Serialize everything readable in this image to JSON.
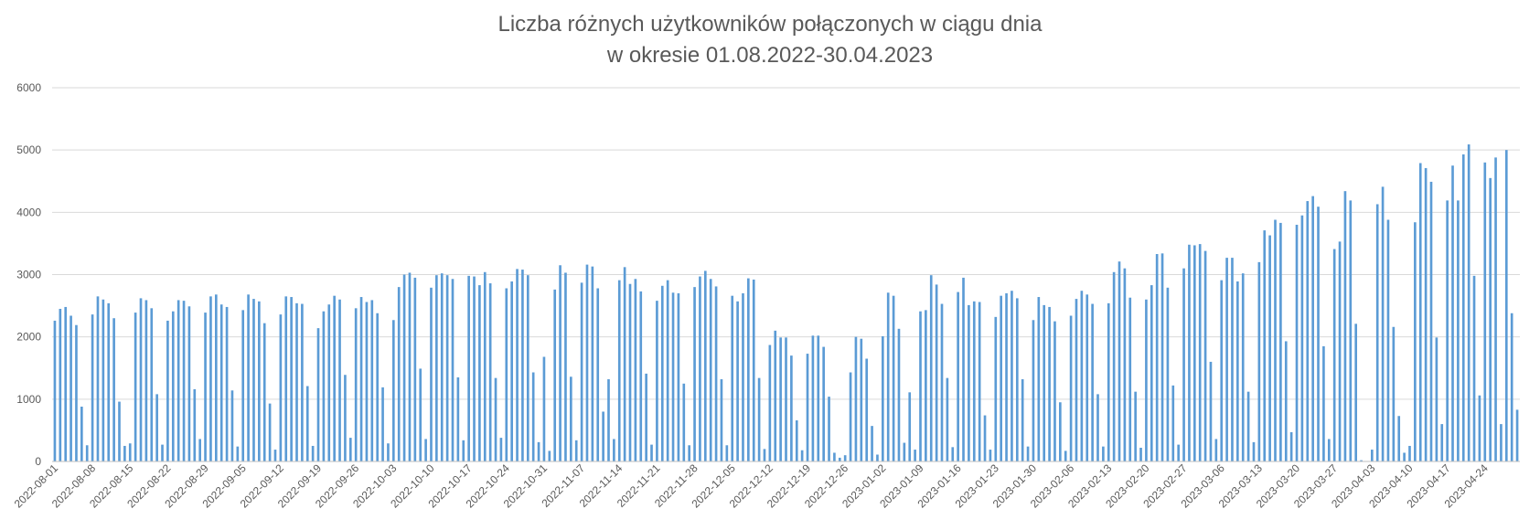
{
  "chart_data": {
    "type": "bar",
    "title_line1": "Liczba różnych użytkowników połączonych w ciągu dnia",
    "title_line2": "w okresie 01.08.2022-30.04.2023",
    "xlabel": "",
    "ylabel": "",
    "ylim": [
      0,
      6000
    ],
    "y_ticks": [
      0,
      1000,
      2000,
      3000,
      4000,
      5000,
      6000
    ],
    "grid": true,
    "legend": "none",
    "bar_color": "#5B9BD5",
    "start_date": "2022-08-01",
    "x_tick_labels": [
      "2022-08-01",
      "2022-08-08",
      "2022-08-15",
      "2022-08-22",
      "2022-08-29",
      "2022-09-05",
      "2022-09-12",
      "2022-09-19",
      "2022-09-26",
      "2022-10-03",
      "2022-10-10",
      "2022-10-17",
      "2022-10-24",
      "2022-10-31",
      "2022-11-07",
      "2022-11-14",
      "2022-11-21",
      "2022-11-28",
      "2022-12-05",
      "2022-12-12",
      "2022-12-19",
      "2022-12-26",
      "2023-01-02",
      "2023-01-09",
      "2023-01-16",
      "2023-01-23",
      "2023-01-30",
      "2023-02-06",
      "2023-02-13",
      "2023-02-20",
      "2023-02-27",
      "2023-03-06",
      "2023-03-13",
      "2023-03-20",
      "2023-03-27",
      "2023-04-03",
      "2023-04-10",
      "2023-04-17",
      "2023-04-24"
    ],
    "values": [
      2260,
      2450,
      2480,
      2340,
      2190,
      880,
      260,
      2360,
      2650,
      2600,
      2540,
      2300,
      960,
      250,
      290,
      2390,
      2620,
      2590,
      2460,
      1080,
      270,
      2260,
      2410,
      2590,
      2580,
      2490,
      1160,
      360,
      2390,
      2650,
      2680,
      2520,
      2480,
      1140,
      240,
      2430,
      2680,
      2610,
      2570,
      2220,
      930,
      190,
      2360,
      2650,
      2640,
      2540,
      2530,
      1210,
      250,
      2140,
      2410,
      2520,
      2660,
      2600,
      1390,
      380,
      2460,
      2640,
      2560,
      2590,
      2380,
      1190,
      290,
      2270,
      2800,
      3000,
      3030,
      2950,
      1490,
      360,
      2790,
      2990,
      3020,
      2990,
      2930,
      1350,
      340,
      2980,
      2970,
      2830,
      3040,
      2860,
      1340,
      380,
      2780,
      2890,
      3090,
      3080,
      2990,
      1430,
      310,
      1680,
      170,
      2760,
      3150,
      3030,
      1360,
      340,
      2870,
      3160,
      3130,
      2780,
      800,
      1320,
      360,
      2910,
      3120,
      2850,
      2930,
      2730,
      1410,
      270,
      2580,
      2820,
      2910,
      2710,
      2700,
      1250,
      260,
      2800,
      2970,
      3060,
      2930,
      2810,
      1320,
      260,
      2660,
      2570,
      2700,
      2940,
      2920,
      1340,
      200,
      1870,
      2100,
      1990,
      1990,
      1700,
      660,
      180,
      1730,
      2020,
      2020,
      1840,
      1040,
      140,
      60,
      100,
      1430,
      2000,
      1970,
      1650,
      570,
      110,
      2010,
      2710,
      2660,
      2130,
      300,
      1110,
      190,
      2410,
      2430,
      2990,
      2840,
      2530,
      1340,
      230,
      2720,
      2950,
      2510,
      2570,
      2560,
      740,
      190,
      2320,
      2660,
      2700,
      2740,
      2620,
      1320,
      240,
      2270,
      2640,
      2510,
      2480,
      2250,
      950,
      170,
      2340,
      2610,
      2740,
      2680,
      2530,
      1080,
      240,
      2540,
      3040,
      3210,
      3100,
      2630,
      1120,
      220,
      2600,
      2830,
      3330,
      3340,
      2790,
      1220,
      270,
      3100,
      3480,
      3470,
      3490,
      3380,
      1600,
      360,
      2910,
      3270,
      3270,
      2890,
      3020,
      1120,
      310,
      3200,
      3710,
      3630,
      3880,
      3830,
      1930,
      470,
      3800,
      3950,
      4180,
      4260,
      4090,
      1850,
      360,
      3410,
      3530,
      4340,
      4190,
      2210,
      20,
      0,
      190,
      4130,
      4410,
      3880,
      2160,
      730,
      140,
      250,
      3840,
      4790,
      4710,
      4490,
      1990,
      600,
      4190,
      4750,
      4190,
      4930,
      5090,
      2980,
      1060,
      4800,
      4550,
      4880,
      600,
      5000,
      2380,
      830
    ]
  }
}
